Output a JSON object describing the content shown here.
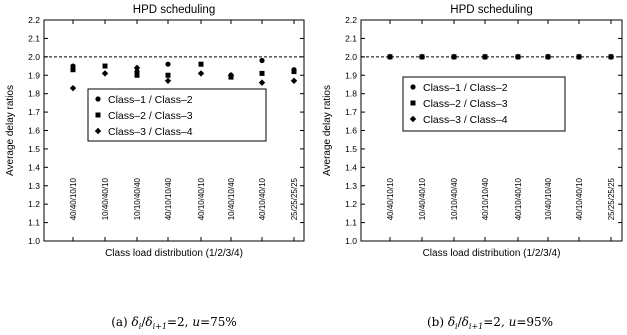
{
  "chart_data": [
    {
      "type": "scatter",
      "title": "HPD scheduling",
      "xlabel": "Class load distribution (1/2/3/4)",
      "ylabel": "Average delay ratios",
      "ylim": [
        1.0,
        2.2
      ],
      "yticks": [
        "1.0",
        "1.1",
        "1.2",
        "1.3",
        "1.4",
        "1.5",
        "1.6",
        "1.7",
        "1.8",
        "1.9",
        "2.0",
        "2.1",
        "2.2"
      ],
      "categories": [
        "40/40/10/10",
        "10/40/40/10",
        "10/10/40/40",
        "40/10/10/40",
        "40/10/40/10",
        "10/40/10/40",
        "40/10/40/10",
        "25/25/25/25"
      ],
      "reference_line": 2.0,
      "legend_position": "center-right",
      "series": [
        {
          "name": "Class–1 / Class–2",
          "marker": "circle",
          "values": [
            1.95,
            null,
            1.92,
            1.96,
            null,
            1.9,
            1.98,
            1.93
          ]
        },
        {
          "name": "Class–2 / Class–3",
          "marker": "square",
          "values": [
            1.93,
            1.95,
            1.9,
            1.9,
            1.96,
            1.89,
            1.91,
            1.92
          ]
        },
        {
          "name": "Class–3 / Class–4",
          "marker": "diamond",
          "values": [
            1.83,
            1.91,
            1.94,
            1.87,
            1.91,
            1.9,
            1.86,
            1.87
          ]
        }
      ],
      "caption": "(a) δi/δi+1=2, u=75%"
    },
    {
      "type": "scatter",
      "title": "HPD scheduling",
      "xlabel": "Class load distribution (1/2/3/4)",
      "ylabel": "Average delay ratios",
      "ylim": [
        1.0,
        2.2
      ],
      "yticks": [
        "1.0",
        "1.1",
        "1.2",
        "1.3",
        "1.4",
        "1.5",
        "1.6",
        "1.7",
        "1.8",
        "1.9",
        "2.0",
        "2.1",
        "2.2"
      ],
      "categories": [
        "40/40/10/10",
        "10/40/40/10",
        "10/10/40/40",
        "40/10/10/40",
        "40/10/40/10",
        "10/40/10/40",
        "40/10/40/10",
        "25/25/25/25"
      ],
      "reference_line": 2.0,
      "legend_position": "center-right",
      "series": [
        {
          "name": "Class–1 / Class–2",
          "marker": "circle",
          "values": [
            2.0,
            2.0,
            2.0,
            2.0,
            2.0,
            2.0,
            2.0,
            2.0
          ]
        },
        {
          "name": "Class–2 / Class–3",
          "marker": "square",
          "values": [
            2.0,
            2.0,
            2.0,
            2.0,
            2.0,
            2.0,
            2.0,
            2.0
          ]
        },
        {
          "name": "Class–3 / Class–4",
          "marker": "diamond",
          "values": [
            2.0,
            2.0,
            2.0,
            2.0,
            2.0,
            2.0,
            2.0,
            2.0
          ]
        }
      ],
      "caption": "(b) δi/δi+1=2, u=95%"
    }
  ]
}
